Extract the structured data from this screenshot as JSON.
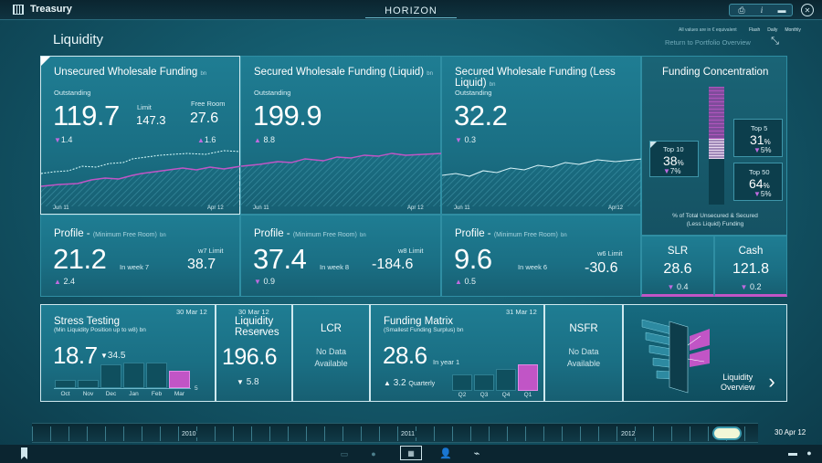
{
  "app": {
    "title": "Treasury",
    "brand": "HORIZON"
  },
  "header": {
    "page_title": "Liquidity",
    "note": "All values are in € equivalent",
    "legend": [
      "Flash",
      "Daily",
      "Monthly"
    ],
    "return_link": "Return to Portfolio Overview"
  },
  "tiles": [
    {
      "title": "Unsecured Wholesale Funding",
      "unit": "bn",
      "outstanding_label": "Outstanding",
      "value": "119.7",
      "change": "1.4",
      "limit_label": "Limit",
      "limit": "147.3",
      "free_label": "Free Room",
      "free": "27.6",
      "free_change": "1.6",
      "x_start": "Jun 11",
      "x_end": "Apr 12"
    },
    {
      "title": "Secured Wholesale Funding (Liquid)",
      "unit": "bn",
      "outstanding_label": "Outstanding",
      "value": "199.9",
      "change": "8.8",
      "x_start": "Jun 11",
      "x_end": "Apr 12"
    },
    {
      "title": "Secured Wholesale Funding (Less Liquid)",
      "unit": "bn",
      "outstanding_label": "Outstanding",
      "value": "32.2",
      "change": "0.3",
      "x_start": "Jun 11",
      "x_end": "Apr12"
    }
  ],
  "profiles": [
    {
      "title": "Profile -",
      "sub": "(Minimum Free Room)",
      "unit": "bn",
      "value": "21.2",
      "week": "In week 7",
      "limit_label": "w7 Limit",
      "limit": "38.7",
      "change": "2.4"
    },
    {
      "title": "Profile -",
      "sub": "(Minimum Free Room)",
      "unit": "bn",
      "value": "37.4",
      "week": "In week 8",
      "limit_label": "w8 Limit",
      "limit": "-184.6",
      "change": "0.9"
    },
    {
      "title": "Profile -",
      "sub": "(Minimum Free Room)",
      "unit": "bn",
      "value": "9.6",
      "week": "In week 6",
      "limit_label": "w6 Limit",
      "limit": "-30.6",
      "change": "0.5"
    }
  ],
  "concentration": {
    "title": "Funding Concentration",
    "top10_label": "Top 10",
    "top10": "38",
    "top10_change": "7",
    "top5_label": "Top 5",
    "top5": "31",
    "top5_change": "5",
    "top50_label": "Top 50",
    "top50": "64",
    "top50_change": "5",
    "pct": "%",
    "caption1": "% of Total Unsecured & Secured",
    "caption2": "(Less Liquid) Funding"
  },
  "slr": {
    "label": "SLR",
    "value": "28.6",
    "change": "0.4"
  },
  "cash": {
    "label": "Cash",
    "value": "121.8",
    "change": "0.2"
  },
  "stress": {
    "title": "Stress Testing",
    "sub": "(Min Liquidity Position up to w8)",
    "unit": "bn",
    "date": "30 Mar 12",
    "value": "18.7",
    "change": "34.5",
    "months": [
      "Oct",
      "Nov",
      "Dec",
      "Jan",
      "Feb",
      "Mar"
    ],
    "values": [
      1.2,
      1.2,
      3.6,
      3.8,
      3.8,
      2.6
    ],
    "threshold": "5"
  },
  "reserves": {
    "date": "30 Mar 12",
    "title1": "Liquidity",
    "title2": "Reserves",
    "unit": "bn",
    "value": "196.6",
    "change": "5.8"
  },
  "lcr": {
    "title": "LCR",
    "nodata1": "No Data",
    "nodata2": "Available"
  },
  "matrix": {
    "title": "Funding Matrix",
    "sub": "(Smallest Funding Surplus)",
    "unit": "bn",
    "date": "31 Mar 12",
    "value": "28.6",
    "week": "In year 1",
    "change": "3.2",
    "period": "Quarterly",
    "quarters": [
      "Q2",
      "Q3",
      "Q4",
      "Q1"
    ],
    "values": [
      2.4,
      2.4,
      3.2,
      3.8
    ]
  },
  "nsfr": {
    "title": "NSFR",
    "nodata1": "No Data",
    "nodata2": "Available"
  },
  "overview": {
    "label1": "Liquidity",
    "label2": "Overview"
  },
  "timeline": {
    "years": [
      "2010",
      "2011",
      "2012"
    ],
    "date": "30 Apr 12"
  },
  "colors": {
    "accent": "#c155c6",
    "tile": "#1f7d93"
  }
}
